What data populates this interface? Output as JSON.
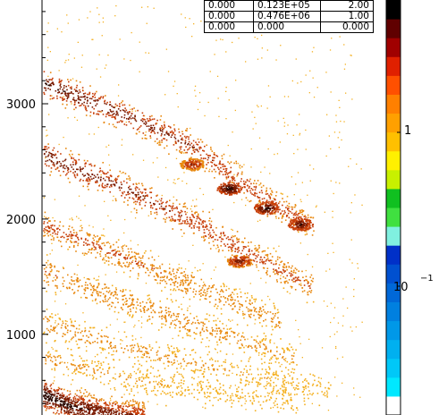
{
  "stats_table": {
    "rows": [
      [
        "0.000",
        "0.123E+05",
        "2.00"
      ],
      [
        "0.000",
        "0.476E+06",
        "1.00"
      ],
      [
        "0.000",
        "0.000",
        "0.000"
      ]
    ]
  },
  "chart_data": {
    "type": "heatmap",
    "y_ticks": [
      "1000",
      "2000",
      "3000"
    ],
    "y_tick_values": [
      1000,
      2000,
      3000
    ],
    "ylim": [
      300,
      3900
    ],
    "xlim": [
      0,
      1
    ],
    "colorbar": {
      "scale": "log",
      "labels": [
        {
          "text": "1",
          "value": 1
        },
        {
          "text": "10",
          "exponent": "−1",
          "value": 0.1
        }
      ],
      "colors": [
        "#ffffff",
        "#00e8ff",
        "#00c8f8",
        "#00b0f0",
        "#0098e8",
        "#0080e0",
        "#0068d8",
        "#0050d0",
        "#0030c8",
        "#80f0e0",
        "#40e040",
        "#10c020",
        "#c8f000",
        "#fff000",
        "#ffc000",
        "#ffa000",
        "#ff8000",
        "#ff5000",
        "#e02000",
        "#a00000",
        "#600000",
        "#000000"
      ]
    },
    "bands": [
      {
        "x": [
          0.0,
          0.25,
          0.45,
          0.6,
          0.7,
          0.8
        ],
        "y": [
          3180,
          2900,
          2620,
          2300,
          2100,
          1950
        ],
        "intensity": 0.85
      },
      {
        "x": [
          0.0,
          0.25,
          0.45,
          0.6,
          0.72,
          0.8
        ],
        "y": [
          2560,
          2260,
          1970,
          1720,
          1530,
          1400
        ],
        "intensity": 0.8
      },
      {
        "x": [
          0.0,
          0.2,
          0.4,
          0.55,
          0.7
        ],
        "y": [
          1950,
          1720,
          1480,
          1300,
          1120
        ],
        "intensity": 0.55
      },
      {
        "x": [
          0.0,
          0.25,
          0.45,
          0.6,
          0.75
        ],
        "y": [
          1550,
          1280,
          1080,
          940,
          780
        ],
        "intensity": 0.45
      },
      {
        "x": [
          0.0,
          0.25,
          0.5,
          0.7,
          0.85
        ],
        "y": [
          1100,
          880,
          720,
          600,
          520
        ],
        "intensity": 0.35
      },
      {
        "x": [
          0.0,
          0.25,
          0.5,
          0.75
        ],
        "y": [
          800,
          620,
          500,
          430
        ],
        "intensity": 0.3
      },
      {
        "x": [
          0.0,
          0.08,
          0.2,
          0.3
        ],
        "y": [
          480,
          380,
          320,
          300
        ],
        "intensity": 1.0
      }
    ],
    "hotspots": [
      {
        "x": 0.55,
        "y": 2270,
        "intensity": 1.0
      },
      {
        "x": 0.66,
        "y": 2100,
        "intensity": 1.0
      },
      {
        "x": 0.76,
        "y": 1960,
        "intensity": 0.9
      },
      {
        "x": 0.58,
        "y": 1640,
        "intensity": 0.8
      },
      {
        "x": 0.44,
        "y": 2480,
        "intensity": 0.7
      }
    ]
  }
}
